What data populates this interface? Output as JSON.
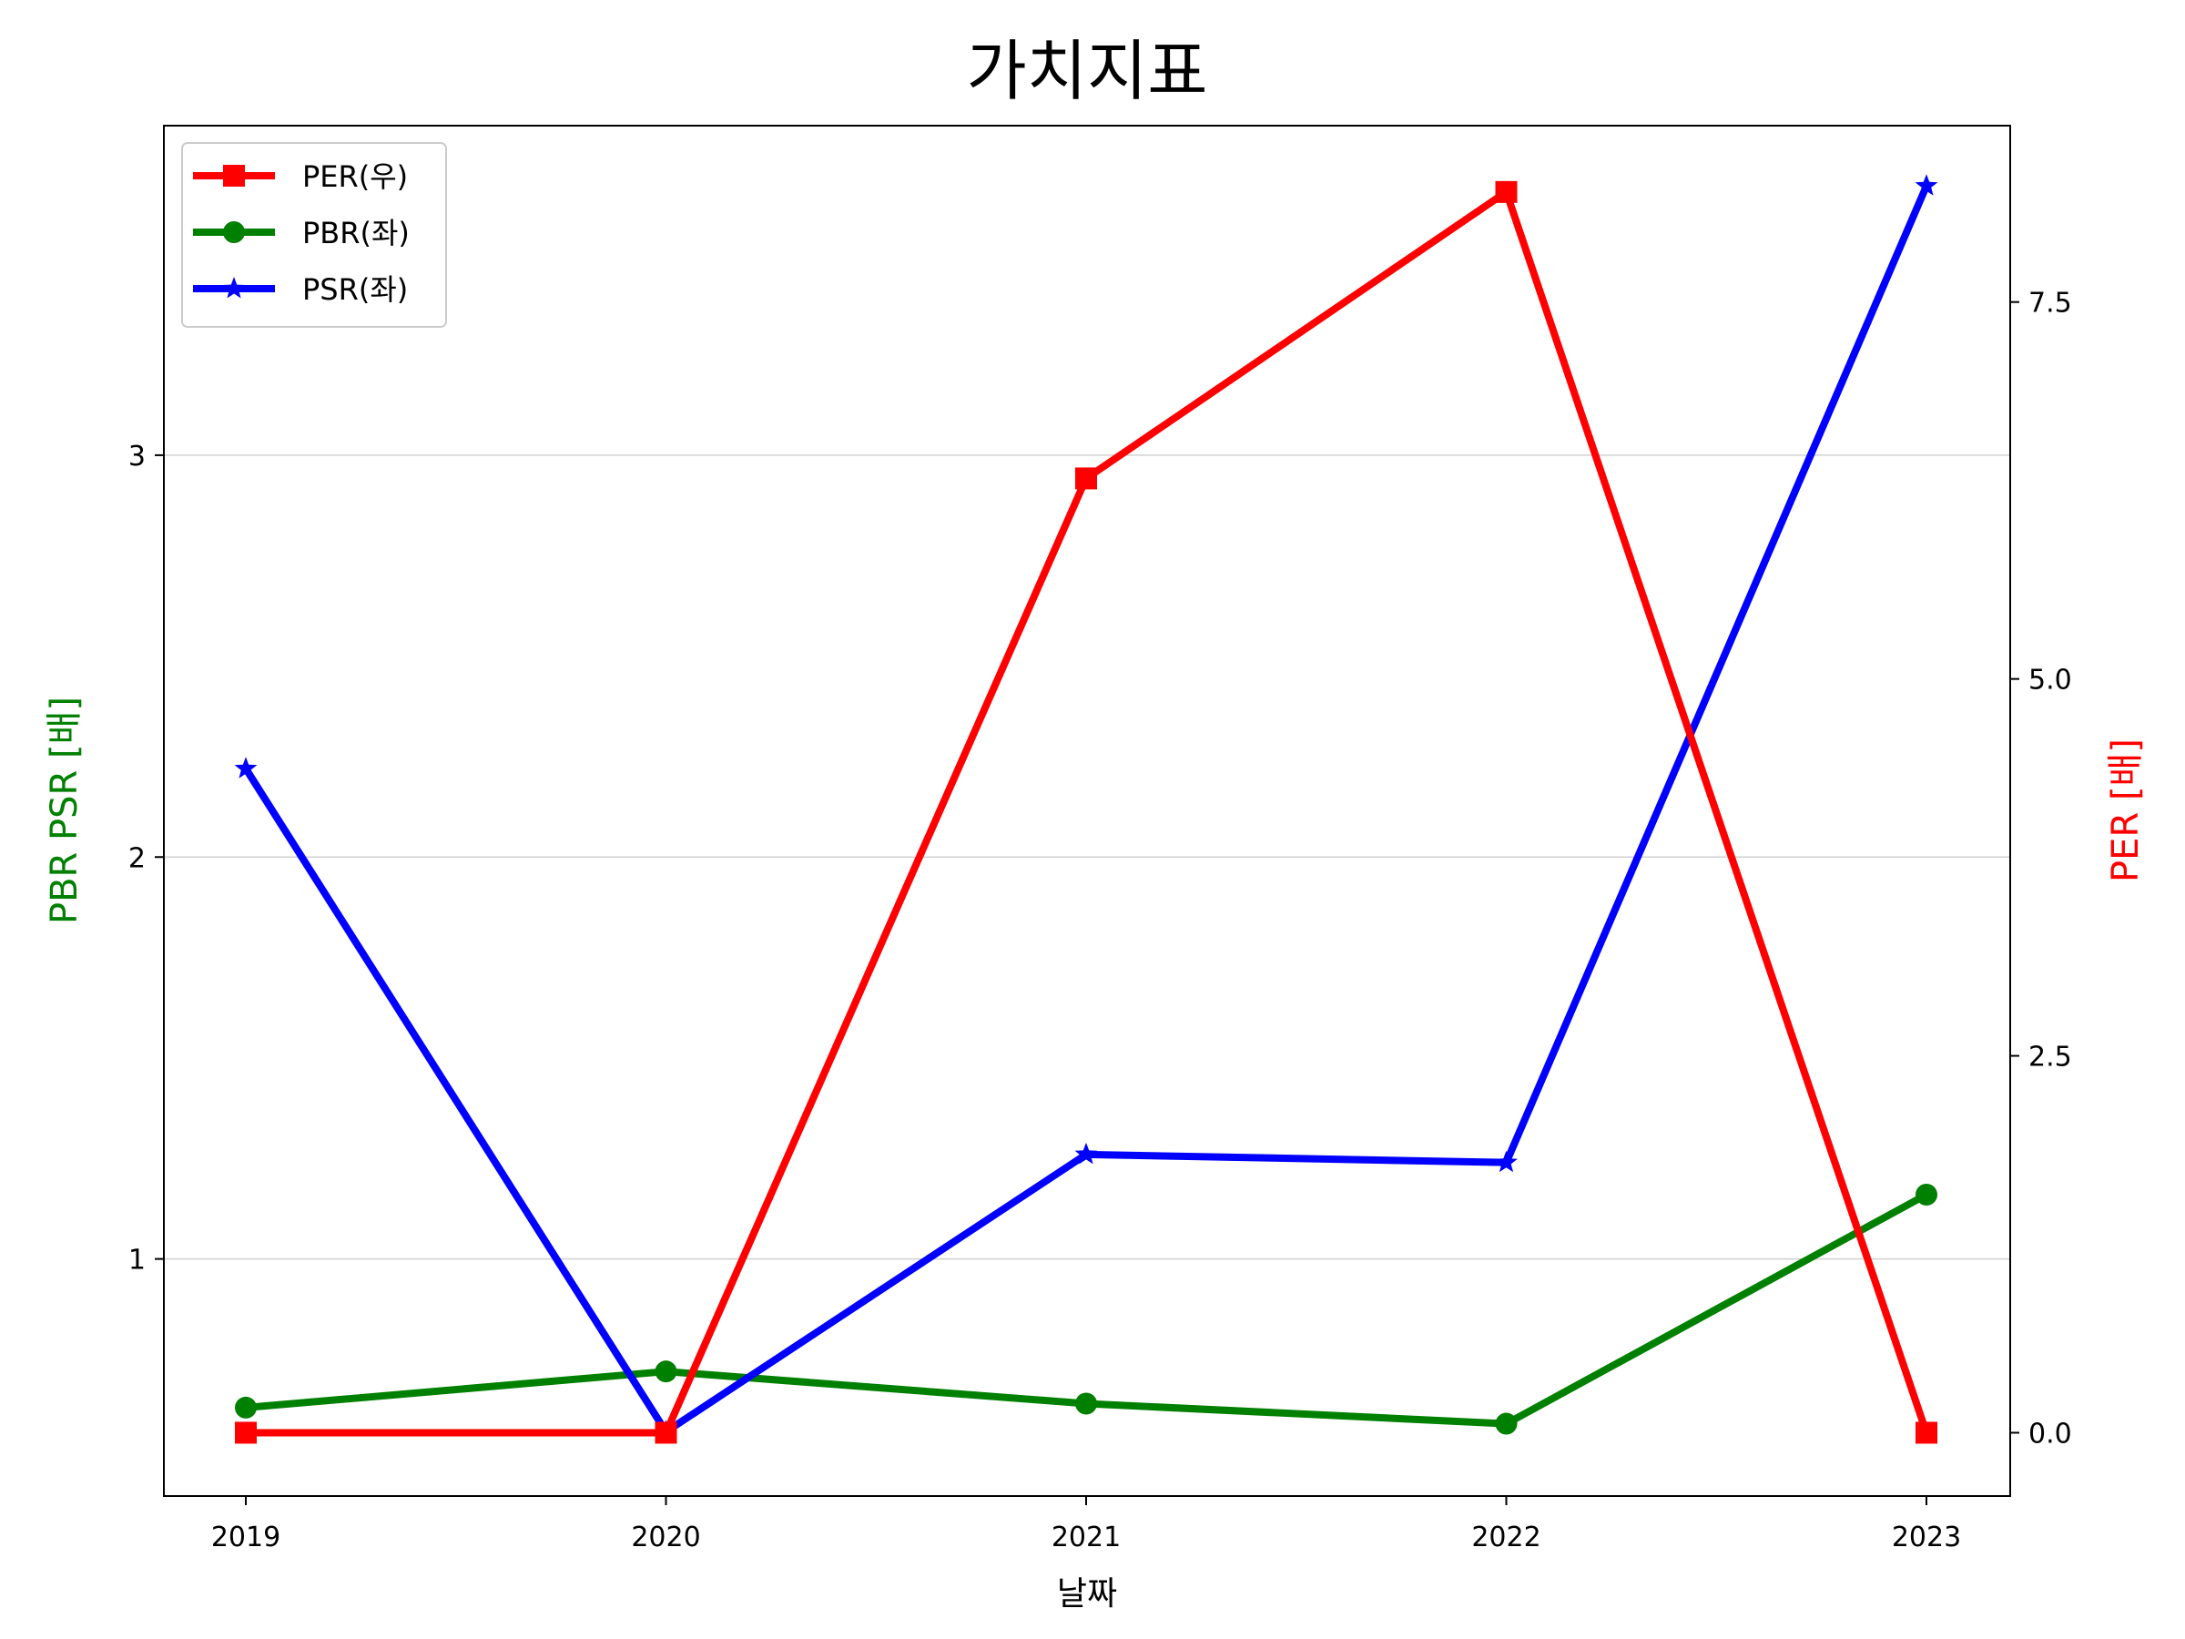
{
  "chart_data": {
    "type": "line",
    "title": "가치지표",
    "xlabel": "날짜",
    "ylabel_left": "PBR PSR [배]",
    "ylabel_right": "PER [배]",
    "categories": [
      "2019",
      "2020",
      "2021",
      "2022",
      "2023"
    ],
    "left_axis": {
      "range": [
        0.41,
        3.82
      ],
      "ticks": [
        1,
        2,
        3
      ],
      "tick_labels": [
        "1",
        "2",
        "3"
      ]
    },
    "right_axis": {
      "range": [
        -0.42,
        8.67
      ],
      "ticks": [
        0.0,
        2.5,
        5.0,
        7.5
      ],
      "tick_labels": [
        "0.0",
        "2.5",
        "5.0",
        "7.5"
      ]
    },
    "grid": "horizontal",
    "legend_placement": "top-left",
    "series": [
      {
        "name": "PER(우)",
        "axis": "right",
        "color": "#ff0000",
        "marker": "square",
        "values": [
          0.0,
          0.0,
          6.33,
          8.23,
          0.0
        ]
      },
      {
        "name": "PBR(좌)",
        "axis": "left",
        "color": "#008000",
        "marker": "circle",
        "values": [
          0.63,
          0.72,
          0.64,
          0.59,
          1.16
        ]
      },
      {
        "name": "PSR(좌)",
        "axis": "left",
        "color": "#0000ff",
        "marker": "star",
        "values": [
          2.22,
          0.57,
          1.26,
          1.24,
          3.67
        ]
      }
    ]
  }
}
